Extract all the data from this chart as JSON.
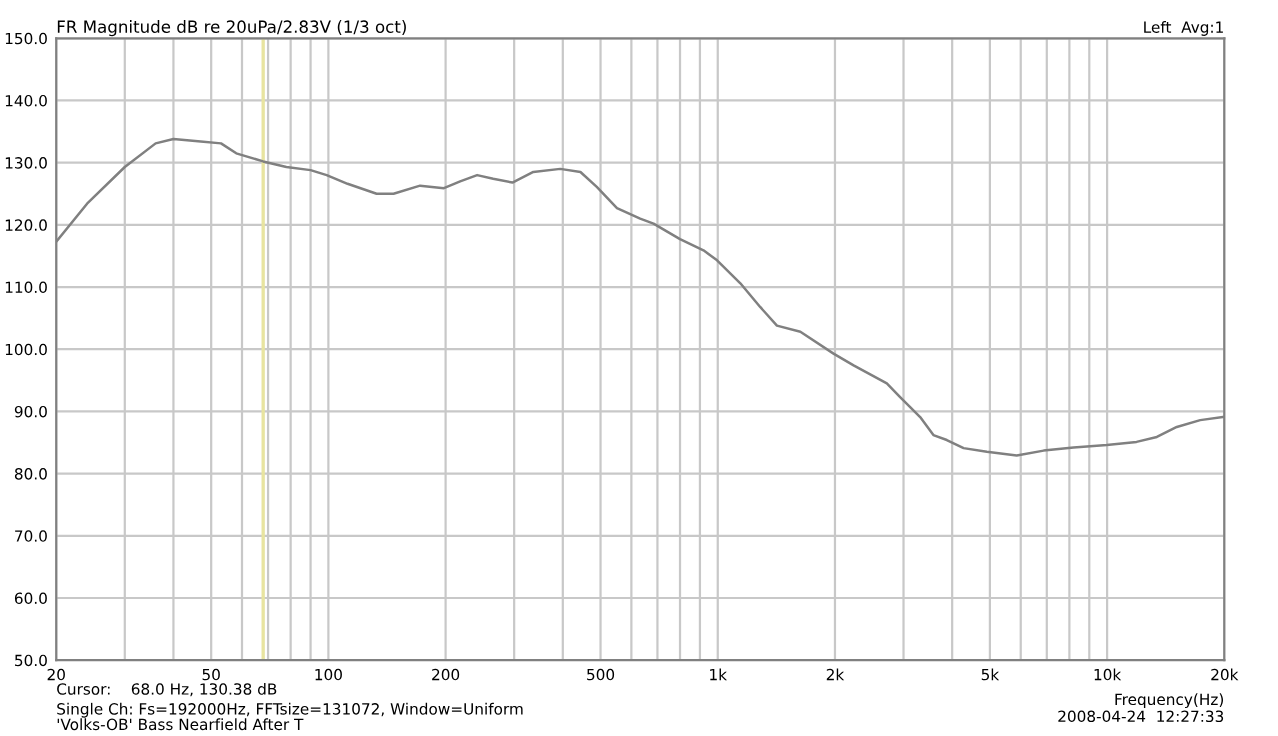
{
  "chart_data": {
    "type": "line",
    "title": "FR Magnitude dB re 20uPa/2.83V (1/3 oct)",
    "subtitle": "Left  Avg:1",
    "xlabel": "Frequency(Hz)",
    "annotations": [
      "Cursor:    68.0 Hz, 130.38 dB",
      "Single Ch: Fs=192000Hz, FFTsize=131072, Window=Uniform",
      "'Volks-OB' Bass Nearfield After T",
      "2008-04-24  12:27:33"
    ],
    "log": "x",
    "grid": true,
    "xlim": [
      20,
      20000
    ],
    "ylim": [
      50,
      150
    ],
    "xticks": [
      20,
      {
        "value": 30,
        "label": null
      },
      {
        "value": 40,
        "label": null
      },
      50,
      {
        "value": 60,
        "label": null
      },
      {
        "value": 70,
        "label": null
      },
      {
        "value": 80,
        "label": null
      },
      {
        "value": 90,
        "label": null
      },
      100,
      200,
      {
        "value": 300,
        "label": null
      },
      {
        "value": 400,
        "label": null
      },
      500,
      {
        "value": 600,
        "label": null
      },
      {
        "value": 700,
        "label": null
      },
      {
        "value": 800,
        "label": null
      },
      {
        "value": 900,
        "label": null
      },
      {
        "value": 1000,
        "label": "1k"
      },
      {
        "value": 2000,
        "label": "2k"
      },
      {
        "value": 3000,
        "label": null
      },
      {
        "value": 4000,
        "label": null
      },
      {
        "value": 5000,
        "label": "5k"
      },
      {
        "value": 6000,
        "label": null
      },
      {
        "value": 7000,
        "label": null
      },
      {
        "value": 8000,
        "label": null
      },
      {
        "value": 9000,
        "label": null
      },
      {
        "value": 10000,
        "label": "10k"
      },
      {
        "value": 20000,
        "label": "20k"
      }
    ],
    "yticks": [
      {
        "value": 50,
        "label": "50.0"
      },
      {
        "value": 60,
        "label": "60.0"
      },
      {
        "value": 70,
        "label": "70.0"
      },
      {
        "value": 80,
        "label": "80.0"
      },
      {
        "value": 90,
        "label": "90.0"
      },
      {
        "value": 100,
        "label": "100.0"
      },
      {
        "value": 110,
        "label": "110.0"
      },
      {
        "value": 120,
        "label": "120.0"
      },
      {
        "value": 130,
        "label": "130.0"
      },
      {
        "value": 140,
        "label": "140.0"
      },
      {
        "value": 150,
        "label": "150.0"
      }
    ],
    "ref_lines": [
      {
        "axis": "x",
        "value": 68,
        "color": "#e8e4a0"
      }
    ],
    "series": [
      {
        "color": "#808080",
        "x": [
          20,
          24,
          30,
          36,
          40,
          47,
          53,
          58,
          68,
          78,
          90,
          99,
          112,
          133,
          147,
          172,
          198,
          218,
          241,
          265,
          297,
          336,
          394,
          444,
          489,
          551,
          632,
          684,
          800,
          919,
          996,
          1143,
          1285,
          1419,
          1630,
          1983,
          2233,
          2718,
          2940,
          3120,
          3310,
          3580,
          3875,
          4280,
          4910,
          5860,
          6870,
          8200,
          9980,
          11900,
          13420,
          15100,
          17340,
          19900
        ],
        "values": [
          117.3,
          123.4,
          129.3,
          133.1,
          133.8,
          133.4,
          133.1,
          131.5,
          130.2,
          129.3,
          128.8,
          128.0,
          126.6,
          125.0,
          125.0,
          126.3,
          125.9,
          127.0,
          128.0,
          127.4,
          126.8,
          128.5,
          129.0,
          128.5,
          126.1,
          122.7,
          121.0,
          120.2,
          117.7,
          115.9,
          114.3,
          110.6,
          106.8,
          103.8,
          102.8,
          99.3,
          97.4,
          94.5,
          92.3,
          90.7,
          89.1,
          86.2,
          85.4,
          84.1,
          83.5,
          82.9,
          83.7,
          84.2,
          84.6,
          85.1,
          85.9,
          87.5,
          88.6,
          89.1
        ]
      }
    ]
  }
}
